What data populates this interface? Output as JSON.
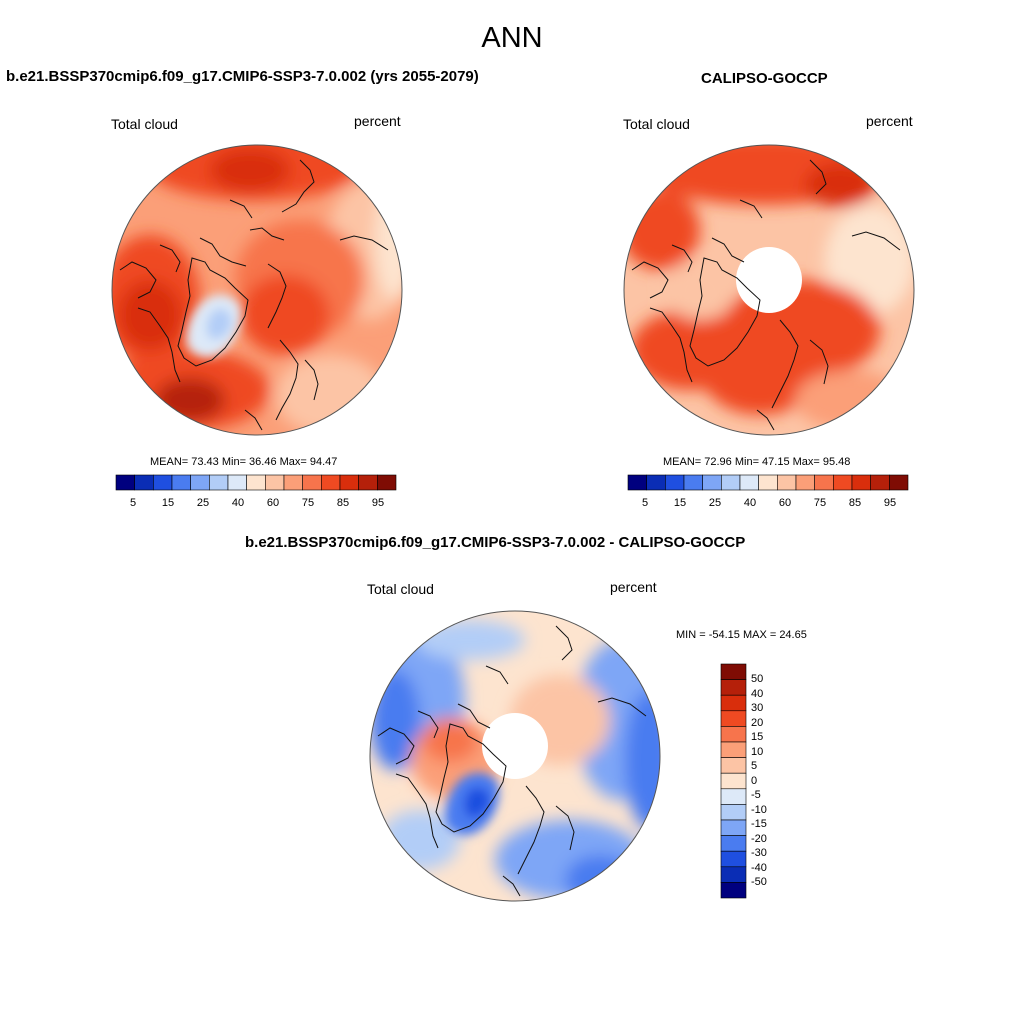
{
  "title": "ANN",
  "panels": [
    {
      "header": "b.e21.BSSP370cmip6.f09_g17.CMIP6-SSP3-7.0.002 (yrs 2055-2079)",
      "variable": "Total cloud",
      "units": "percent",
      "stats": "MEAN=  73.43   Min=  36.46   Max=  94.47"
    },
    {
      "header": "CALIPSO-GOCCP",
      "variable": "Total cloud",
      "units": "percent",
      "stats": "MEAN=  72.96   Min=  47.15   Max=  95.48"
    },
    {
      "header": "b.e21.BSSP370cmip6.f09_g17.CMIP6-SSP3-7.0.002 - CALIPSO-GOCCP",
      "variable": "Total cloud",
      "units": "percent",
      "stats": "MIN = -54.15 MAX =  24.65"
    }
  ],
  "colorbar_abs": {
    "ticks": [
      "5",
      "15",
      "25",
      "40",
      "60",
      "75",
      "85",
      "95"
    ],
    "colors": [
      "#00007f",
      "#0a2db5",
      "#1f4fe0",
      "#4a7cf0",
      "#7ea6f6",
      "#b2cdf7",
      "#dde9f8",
      "#fde4cf",
      "#fcc4a5",
      "#fb9f78",
      "#f7744c",
      "#ef4a22",
      "#d92e0c",
      "#b5200a",
      "#7f0c04"
    ]
  },
  "colorbar_diff": {
    "ticks": [
      "50",
      "40",
      "30",
      "20",
      "15",
      "10",
      "5",
      "0",
      "-5",
      "-10",
      "-15",
      "-20",
      "-30",
      "-40",
      "-50"
    ],
    "colors": [
      "#7f0c04",
      "#b5200a",
      "#d92e0c",
      "#ef4a22",
      "#f7744c",
      "#fb9f78",
      "#fcc4a5",
      "#fde4cf",
      "#dde9f8",
      "#b2cdf7",
      "#7ea6f6",
      "#4a7cf0",
      "#1f4fe0",
      "#0a2db5",
      "#00007f"
    ]
  }
}
